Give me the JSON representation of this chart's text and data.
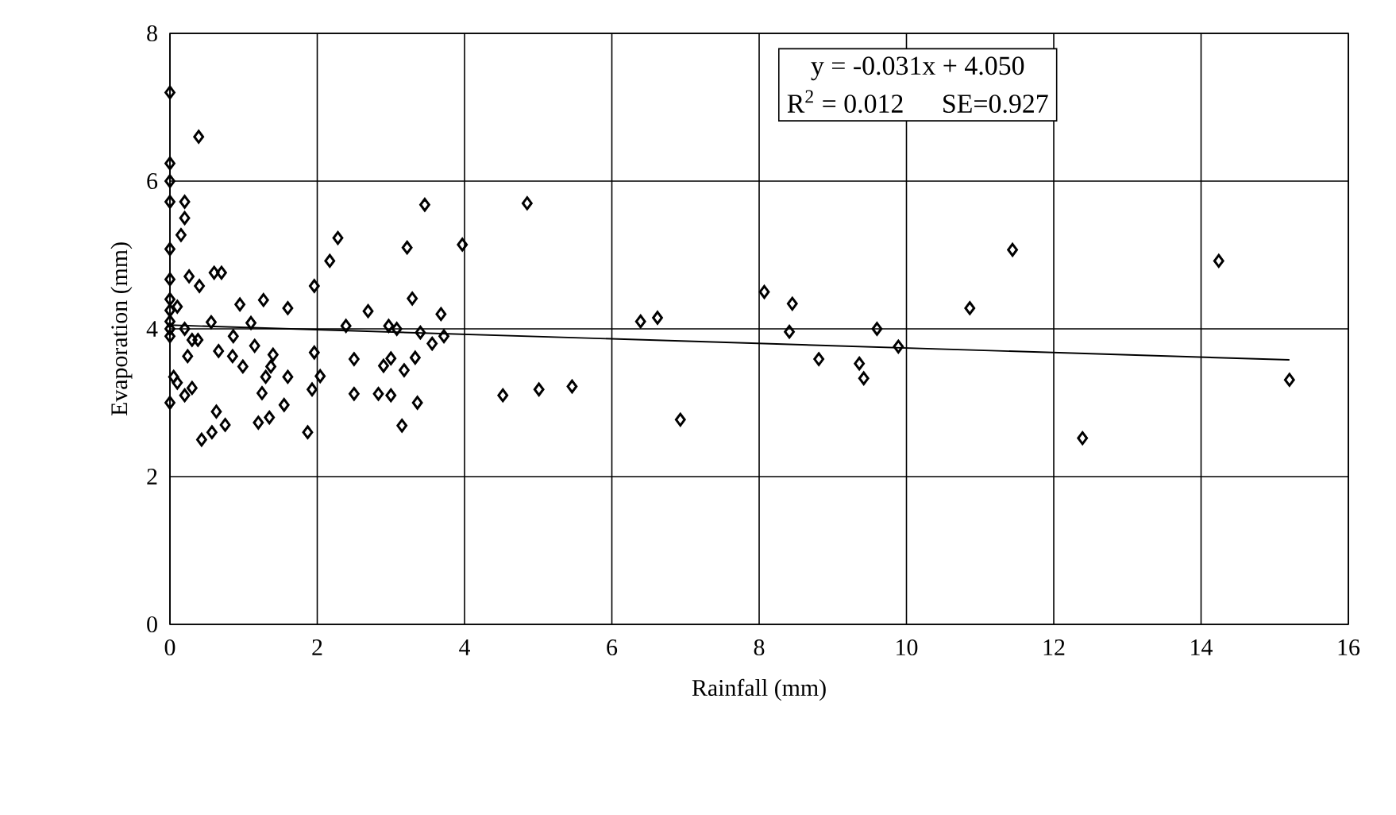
{
  "chart_data": {
    "type": "scatter",
    "xlabel": "Rainfall (mm)",
    "ylabel": "Evaporation (mm)",
    "xlim": [
      0,
      16
    ],
    "xticks": [
      0,
      2,
      4,
      6,
      8,
      10,
      12,
      14,
      16
    ],
    "ylim": [
      0,
      8
    ],
    "yticks": [
      0,
      2,
      4,
      6,
      8
    ],
    "grid": true,
    "marker": "diamond",
    "annotations": [
      "y = -0.031x + 4.050",
      "R$^{2}$ = 0.012",
      "SE=0.927"
    ],
    "series": [
      {
        "color": "#000000",
        "x": [
          0,
          0.39,
          0,
          0,
          0,
          0.2,
          0.2,
          0.15,
          0,
          0,
          0.26,
          0.6,
          0.7,
          0.4,
          0,
          0,
          0,
          0,
          0,
          0.1,
          0.2,
          0.3,
          0.56,
          0.86,
          0.95,
          1.1,
          1.15,
          1.27,
          1.6,
          0.24,
          0.38,
          0.66,
          0.85,
          0.99,
          1.37,
          1.4,
          1.3,
          1.6,
          1.96,
          2.04,
          1.93,
          1.25,
          1.55,
          1.2,
          1.35,
          1.87,
          0.63,
          0.43,
          0.57,
          0.75,
          0,
          0.1,
          0.3,
          0.05,
          0.2,
          1.96,
          2.17,
          2.28,
          2.39,
          2.5,
          2.5,
          2.69,
          2.83,
          2.9,
          2.97,
          3.0,
          3.0,
          3.08,
          3.15,
          3.18,
          3.22,
          3.29,
          3.33,
          3.36,
          3.4,
          3.46,
          3.56,
          3.68,
          3.72,
          3.97,
          4.52,
          4.85,
          5.01,
          5.46,
          6.39,
          6.62,
          6.93,
          8.07,
          8.45,
          8.41,
          8.81,
          9.36,
          9.42,
          9.6,
          9.89,
          10.86,
          11.44,
          12.39,
          14.24,
          15.2
        ],
        "values": [
          7.2,
          6.6,
          6.24,
          6.0,
          5.72,
          5.72,
          5.5,
          5.27,
          5.08,
          4.67,
          4.71,
          4.76,
          4.76,
          4.58,
          4.4,
          4.25,
          4.1,
          4.0,
          3.9,
          4.3,
          4.0,
          3.85,
          4.09,
          3.9,
          4.33,
          4.08,
          3.77,
          4.39,
          4.28,
          3.63,
          3.85,
          3.7,
          3.63,
          3.49,
          3.49,
          3.65,
          3.35,
          3.35,
          3.68,
          3.36,
          3.18,
          3.13,
          2.97,
          2.73,
          2.8,
          2.6,
          2.88,
          2.5,
          2.6,
          2.7,
          3.0,
          3.27,
          3.2,
          3.35,
          3.1,
          4.58,
          4.92,
          5.23,
          4.04,
          3.59,
          3.12,
          4.24,
          3.12,
          3.5,
          4.04,
          3.6,
          3.1,
          4.0,
          2.69,
          3.44,
          5.1,
          4.41,
          3.61,
          3.0,
          3.95,
          5.68,
          3.8,
          4.2,
          3.9,
          5.14,
          3.1,
          5.7,
          3.18,
          3.22,
          4.1,
          4.15,
          2.77,
          4.5,
          4.34,
          3.96,
          3.59,
          3.53,
          3.33,
          4.0,
          3.76,
          4.28,
          5.07,
          2.52,
          4.92,
          3.31
        ]
      },
      {
        "type": "line",
        "color": "#000000",
        "marker": "none",
        "x": [
          0,
          15.2
        ],
        "values": [
          4.05,
          3.58
        ]
      }
    ]
  }
}
